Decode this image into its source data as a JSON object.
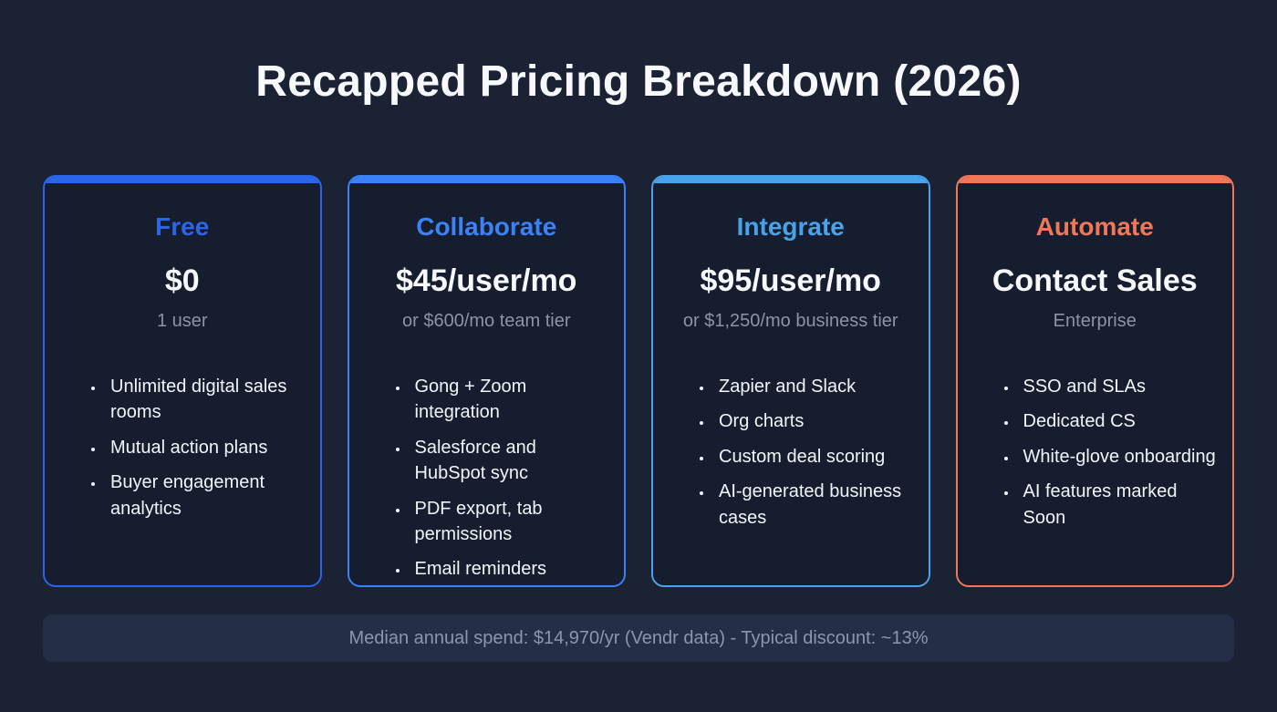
{
  "page": {
    "title": "Recapped Pricing Breakdown (2026)"
  },
  "plans": [
    {
      "name": "Free",
      "price": "$0",
      "subtitle": "1 user",
      "accent": "#2c66e8",
      "features": [
        "Unlimited digital sales rooms",
        "Mutual action plans",
        "Buyer engagement analytics"
      ]
    },
    {
      "name": "Collaborate",
      "price": "$45/user/mo",
      "subtitle": "or $600/mo team tier",
      "accent": "#3b82f6",
      "features": [
        "Gong + Zoom integration",
        "Salesforce and HubSpot sync",
        "PDF export, tab permissions",
        "Email reminders"
      ]
    },
    {
      "name": "Integrate",
      "price": "$95/user/mo",
      "subtitle": "or $1,250/mo business tier",
      "accent": "#4aa3e8",
      "features": [
        "Zapier and Slack",
        "Org charts",
        "Custom deal scoring",
        "AI-generated business cases"
      ]
    },
    {
      "name": "Automate",
      "price": "Contact Sales",
      "subtitle": "Enterprise",
      "accent": "#f0785a",
      "features": [
        "SSO and SLAs",
        "Dedicated CS",
        "White-glove onboarding",
        "AI features marked Soon"
      ]
    }
  ],
  "footer": {
    "text": "Median annual spend: $14,970/yr (Vendr data) - Typical discount: ~13%"
  }
}
